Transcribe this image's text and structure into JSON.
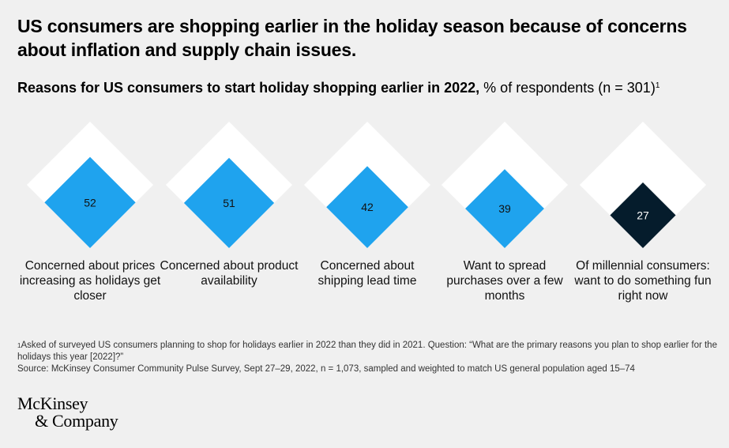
{
  "headline": "US consumers are shopping earlier in the holiday season because of concerns about inflation and supply chain issues.",
  "subtitle": {
    "bold": "Reasons for US consumers to start holiday shopping earlier in 2022,",
    "regular": " % of respondents (n = 301)",
    "footnote_marker": "1"
  },
  "colors": {
    "background": "#f0f0f0",
    "outer_diamond": "#ffffff",
    "value_diamond": "#1fa3ee",
    "highlight_diamond": "#051c2c"
  },
  "chart_data": {
    "type": "diamond",
    "max": 100,
    "categories": [
      "Concerned about prices increasing as holidays get closer",
      "Concerned about product availability",
      "Concerned about shipping lead time",
      "Want to spread purchases over a few months",
      "Of millennial consumers: want to do something fun right now"
    ],
    "values": [
      52,
      51,
      42,
      39,
      27
    ],
    "value_labels": [
      "52",
      "51",
      "42",
      "39",
      "27"
    ],
    "highlighted": [
      false,
      false,
      false,
      false,
      true
    ]
  },
  "footnote": {
    "marker": "1",
    "question": "Asked of surveyed US consumers planning to shop for holidays earlier in 2022 than they did in 2021. Question: “What are the primary reasons you plan to shop earlier for the holidays this year [2022]?”",
    "source": "Source: McKinsey Consumer Community Pulse Survey, Sept 27–29, 2022, n = 1,073, sampled and weighted to match US general population aged 15–74"
  },
  "logo": {
    "line1": "McKinsey",
    "line2": "& Company"
  }
}
